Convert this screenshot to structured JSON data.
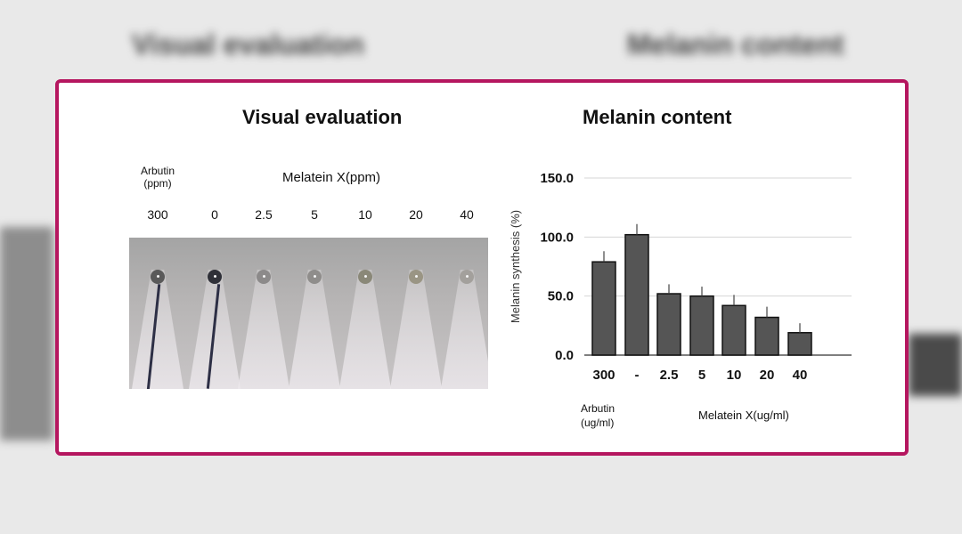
{
  "visual_panel": {
    "title": "Visual evaluation",
    "arbutin_label": "Arbutin\n(ppm)",
    "melatein_label": "Melatein X(ppm)",
    "concentrations": [
      "300",
      "0",
      "2.5",
      "5",
      "10",
      "20",
      "40"
    ],
    "pellet_colors": [
      "#5a5a5a",
      "#2f3038",
      "#8c8a8a",
      "#8f8d8b",
      "#8a8878",
      "#9a9584",
      "#a3a09c"
    ]
  },
  "chart_panel": {
    "title": "Melanin content",
    "group_labels": {
      "arbutin": "Arbutin\n(ug/ml)",
      "melatein": "Melatein X(ug/ml)"
    }
  },
  "chart_data": {
    "type": "bar",
    "categories": [
      "300",
      "-",
      "2.5",
      "5",
      "10",
      "20",
      "40"
    ],
    "values": [
      79,
      102,
      52,
      50,
      42,
      32,
      19
    ],
    "errors": [
      9,
      9,
      8,
      8,
      9,
      9,
      8
    ],
    "ylabel": "Melanin synthesis (%)",
    "ylim": [
      0,
      150
    ],
    "yticks": [
      "0.0",
      "50.0",
      "100.0",
      "150.0"
    ],
    "grid": true,
    "bar_color": "#555555"
  }
}
